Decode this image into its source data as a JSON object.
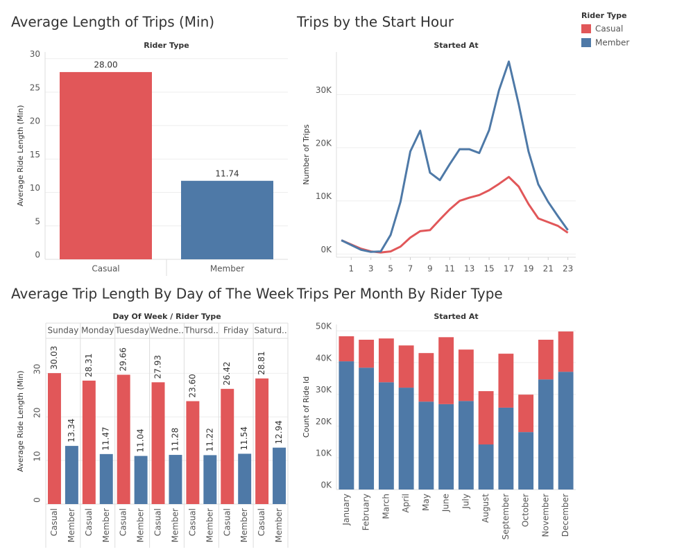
{
  "chart_data": [
    {
      "type": "bar",
      "title": "Average Length of Trips (Min)",
      "header": "Rider Type",
      "y_label": "Average Ride Length (Min)",
      "categories": [
        "Casual",
        "Member"
      ],
      "values": [
        28.0,
        11.74
      ],
      "value_labels": [
        "28.00",
        "11.74"
      ],
      "colors": [
        "#e15759",
        "#4e79a7"
      ],
      "ylim": [
        0,
        31
      ],
      "yticks": [
        0,
        5,
        10,
        15,
        20,
        25,
        30
      ],
      "grid": true
    },
    {
      "type": "line",
      "title": "Trips by the Start Hour",
      "header": "Started At",
      "y_label": "Number of Trips",
      "legend_title": "Rider Type",
      "legend": "top-right",
      "x": [
        0,
        1,
        2,
        3,
        4,
        5,
        6,
        7,
        8,
        9,
        10,
        11,
        12,
        13,
        14,
        15,
        16,
        17,
        18,
        19,
        20,
        21,
        22,
        23
      ],
      "series": [
        {
          "name": "Casual",
          "color": "#e15759",
          "values": [
            2600,
            1800,
            1000,
            500,
            300,
            500,
            1400,
            3100,
            4300,
            4500,
            6500,
            8400,
            10000,
            10600,
            11100,
            12000,
            13200,
            14500,
            12700,
            9400,
            6700,
            6000,
            5300,
            4000
          ]
        },
        {
          "name": "Member",
          "color": "#4e79a7",
          "values": [
            2600,
            1700,
            800,
            400,
            500,
            3600,
            9800,
            19300,
            23200,
            15300,
            13900,
            16900,
            19700,
            19700,
            19000,
            23300,
            30800,
            36200,
            28200,
            19300,
            13100,
            9800,
            7100,
            4500
          ]
        }
      ],
      "xlim": [
        -0.5,
        23.8
      ],
      "xticks": [
        1,
        3,
        5,
        7,
        9,
        11,
        13,
        15,
        17,
        19,
        21,
        23
      ],
      "ylim": [
        -600,
        38000
      ],
      "yticks": [
        {
          "value": 0,
          "label": "0K"
        },
        {
          "value": 10000,
          "label": "10K"
        },
        {
          "value": 20000,
          "label": "20K"
        },
        {
          "value": 30000,
          "label": "30K"
        }
      ],
      "grid": true
    },
    {
      "type": "bar",
      "title": "Average Trip Length By Day of The Week",
      "header": "Day Of Week / Rider Type",
      "y_label": "Average Ride Length (Min)",
      "categories": [
        "Sunday",
        "Monday",
        "Tuesday",
        "Wedne..",
        "Thursd..",
        "Friday",
        "Saturd.."
      ],
      "series": [
        {
          "name": "Casual",
          "color": "#e15759",
          "values": [
            30.03,
            28.31,
            29.66,
            27.93,
            23.6,
            26.42,
            28.81
          ],
          "value_labels": [
            "30.03",
            "28.31",
            "29.66",
            "27.93",
            "23.60",
            "26.42",
            "28.81"
          ]
        },
        {
          "name": "Member",
          "color": "#4e79a7",
          "values": [
            13.34,
            11.47,
            11.04,
            11.28,
            11.22,
            11.54,
            12.94
          ],
          "value_labels": [
            "13.34",
            "11.47",
            "11.04",
            "11.28",
            "11.22",
            "11.54",
            "12.94"
          ]
        }
      ],
      "ylim": [
        0,
        38
      ],
      "yticks": [
        0,
        10,
        20,
        30
      ],
      "grid": true
    },
    {
      "type": "bar",
      "title": "Trips Per Month By Rider Type",
      "header": "Started At",
      "y_label": "Count of Ride Id",
      "stacked": true,
      "categories": [
        "January",
        "February",
        "March",
        "April",
        "May",
        "June",
        "July",
        "August",
        "September",
        "October",
        "November",
        "December"
      ],
      "series": [
        {
          "name": "Member",
          "color": "#4e79a7",
          "values": [
            40400,
            38400,
            33800,
            32100,
            27700,
            26900,
            27900,
            14200,
            25800,
            18100,
            34700,
            37100
          ]
        },
        {
          "name": "Casual",
          "color": "#e15759",
          "values": [
            7900,
            8800,
            13800,
            13300,
            15300,
            21100,
            16200,
            16800,
            17000,
            11800,
            12500,
            12700
          ]
        }
      ],
      "ylim": [
        0,
        52000
      ],
      "yticks": [
        {
          "value": 0,
          "label": "0K"
        },
        {
          "value": 10000,
          "label": "10K"
        },
        {
          "value": 20000,
          "label": "20K"
        },
        {
          "value": 30000,
          "label": "30K"
        },
        {
          "value": 40000,
          "label": "40K"
        },
        {
          "value": 50000,
          "label": "50K"
        }
      ],
      "grid": true
    }
  ]
}
